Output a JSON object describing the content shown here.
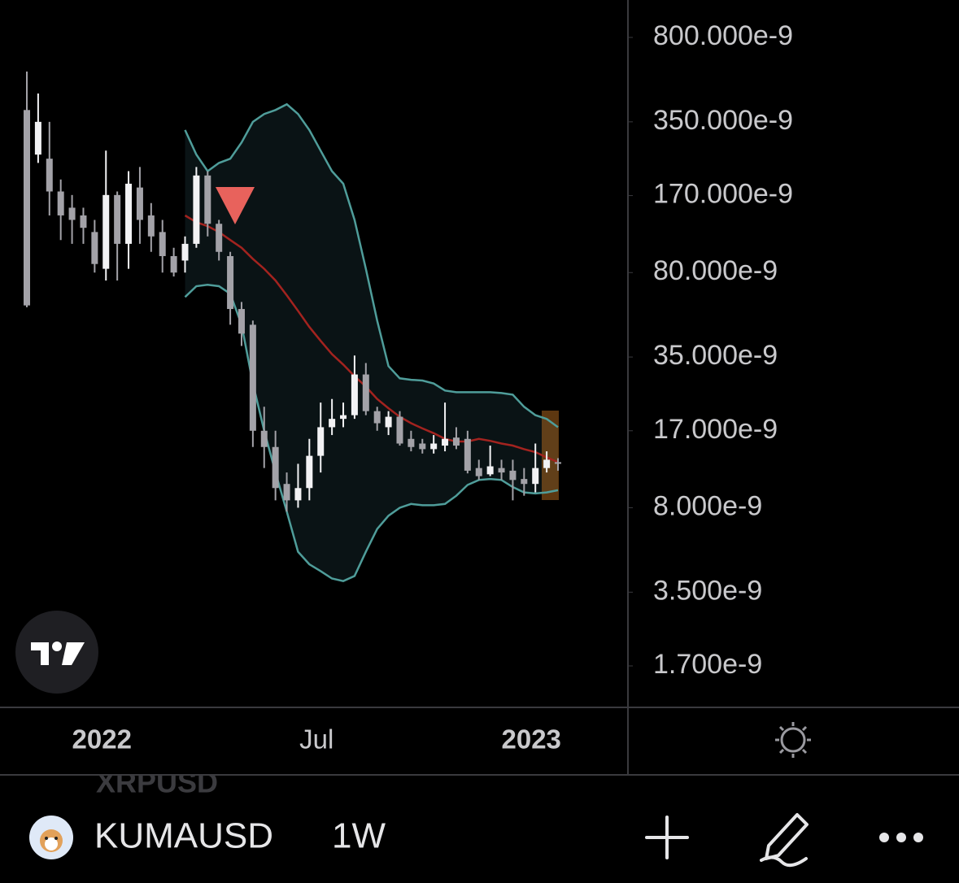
{
  "chart_data": {
    "type": "candlestick",
    "log_scale": true,
    "up_color": "#f2f2f4",
    "down_color": "#a3a2a8",
    "categories": [
      null,
      null,
      null,
      null,
      null,
      null,
      null,
      "2022",
      null,
      null,
      null,
      null,
      null,
      null,
      null,
      null,
      null,
      null,
      null,
      null,
      null,
      null,
      null,
      null,
      null,
      null,
      "Jul",
      null,
      null,
      null,
      null,
      null,
      null,
      null,
      null,
      null,
      null,
      null,
      null,
      null,
      null,
      null,
      null,
      null,
      null,
      "2023",
      null,
      null
    ],
    "open": [
      3.93e-07,
      2.54e-07,
      2.44e-07,
      1.77e-07,
      1.51e-07,
      1.4e-07,
      1.19e-07,
      8.3e-08,
      1.71e-07,
      1.06e-07,
      1.84e-07,
      1.4e-07,
      1.19e-07,
      9.4e-08,
      9e-08,
      1.06e-07,
      2.07e-07,
      1.29e-07,
      9.4e-08,
      5.6e-08,
      4.8e-08,
      1.7e-08,
      1.45e-08,
      1.01e-08,
      8.6e-09,
      9.7e-09,
      1.33e-08,
      1.76e-08,
      1.91e-08,
      1.98e-08,
      2.95e-08,
      2.06e-08,
      1.76e-08,
      1.95e-08,
      1.57e-08,
      1.5e-08,
      1.42e-08,
      1.47e-08,
      1.59e-08,
      1.57e-08,
      1.18e-08,
      1.11e-08,
      1.18e-08,
      1.15e-08,
      1.06e-08,
      1.01e-08,
      1.18e-08,
      1.25e-08
    ],
    "high": [
      5.73e-07,
      4.62e-07,
      3.5e-07,
      1.99e-07,
      1.71e-07,
      1.51e-07,
      1.34e-07,
      2.64e-07,
      1.77e-07,
      2.16e-07,
      2.25e-07,
      1.58e-07,
      1.34e-07,
      1.02e-07,
      1.14e-07,
      2.25e-07,
      2.16e-07,
      1.34e-07,
      9.8e-08,
      6e-08,
      5e-08,
      2.15e-08,
      1.7e-08,
      1.13e-08,
      1.23e-08,
      1.57e-08,
      2.24e-08,
      2.32e-08,
      2.24e-08,
      3.55e-08,
      3.3e-08,
      2.15e-08,
      2.06e-08,
      2.06e-08,
      1.7e-08,
      1.57e-08,
      1.63e-08,
      2.24e-08,
      1.76e-08,
      1.7e-08,
      1.28e-08,
      1.47e-08,
      1.28e-08,
      1.28e-08,
      1.18e-08,
      1.5e-08,
      1.39e-08,
      1.3e-08
    ],
    "low": [
      5.7e-08,
      2.34e-07,
      1.4e-07,
      1.1e-07,
      1.06e-07,
      1.06e-07,
      8e-08,
      7.4e-08,
      7.4e-08,
      8.3e-08,
      1.06e-07,
      9.8e-08,
      8e-08,
      7.7e-08,
      8e-08,
      1.02e-07,
      1.14e-07,
      9e-08,
      4.8e-08,
      3.9e-08,
      1.45e-08,
      1.18e-08,
      8.6e-09,
      7.7e-09,
      8e-09,
      8.6e-09,
      1.13e-08,
      1.63e-08,
      1.76e-08,
      1.91e-08,
      1.98e-08,
      1.7e-08,
      1.63e-08,
      1.47e-08,
      1.39e-08,
      1.36e-08,
      1.36e-08,
      1.39e-08,
      1.42e-08,
      1.12e-08,
      1.05e-08,
      1.09e-08,
      1.05e-08,
      8.6e-09,
      9e-09,
      9.3e-09,
      1.13e-08,
      1.15e-08
    ],
    "close": [
      5.8e-08,
      3.5e-07,
      1.77e-07,
      1.4e-07,
      1.34e-07,
      1.24e-07,
      8.7e-08,
      1.71e-07,
      1.06e-07,
      1.91e-07,
      1.34e-07,
      1.14e-07,
      9.4e-08,
      8e-08,
      1.06e-07,
      2.07e-07,
      1.29e-07,
      9.8e-08,
      5.6e-08,
      4.4e-08,
      1.7e-08,
      1.45e-08,
      9.7e-09,
      8.6e-09,
      9.7e-09,
      1.33e-08,
      1.76e-08,
      1.91e-08,
      1.98e-08,
      2.95e-08,
      2.06e-08,
      1.83e-08,
      1.95e-08,
      1.5e-08,
      1.45e-08,
      1.42e-08,
      1.5e-08,
      1.57e-08,
      1.47e-08,
      1.15e-08,
      1.09e-08,
      1.2e-08,
      1.13e-08,
      1.05e-08,
      1.01e-08,
      1.18e-08,
      1.28e-08,
      1.23e-08
    ],
    "series": [
      {
        "color": "#4f9d9a",
        "values": [
          null,
          null,
          null,
          null,
          null,
          null,
          null,
          null,
          null,
          null,
          null,
          null,
          null,
          null,
          3.23e-07,
          2.54e-07,
          2.16e-07,
          2.34e-07,
          2.44e-07,
          2.86e-07,
          3.5e-07,
          3.78e-07,
          3.93e-07,
          4.16e-07,
          3.78e-07,
          3.23e-07,
          2.64e-07,
          2.16e-07,
          1.91e-07,
          1.34e-07,
          8.3e-08,
          5e-08,
          3.2e-08,
          2.84e-08,
          2.8e-08,
          2.78e-08,
          2.7e-08,
          2.52e-08,
          2.48e-08,
          2.48e-08,
          2.48e-08,
          2.48e-08,
          2.46e-08,
          2.42e-08,
          2.15e-08,
          1.98e-08,
          1.91e-08,
          1.76e-08
        ]
      },
      {
        "color": "#a3231f",
        "values": [
          null,
          null,
          null,
          null,
          null,
          null,
          null,
          null,
          null,
          null,
          null,
          null,
          null,
          null,
          1.4e-07,
          1.31e-07,
          1.26e-07,
          1.19e-07,
          1.1e-07,
          1.02e-07,
          9.15e-08,
          8.3e-08,
          7.4e-08,
          6.4e-08,
          5.5e-08,
          4.7e-08,
          4.1e-08,
          3.6e-08,
          3.25e-08,
          2.9e-08,
          2.62e-08,
          2.32e-08,
          2.12e-08,
          1.95e-08,
          1.83e-08,
          1.74e-08,
          1.66e-08,
          1.57e-08,
          1.53e-08,
          1.53e-08,
          1.57e-08,
          1.54e-08,
          1.5e-08,
          1.47e-08,
          1.42e-08,
          1.38e-08,
          1.31e-08,
          1.25e-08
        ]
      },
      {
        "color": "#4f9d9a",
        "values": [
          null,
          null,
          null,
          null,
          null,
          null,
          null,
          null,
          null,
          null,
          null,
          null,
          null,
          null,
          6.3e-08,
          7e-08,
          7.1e-08,
          7e-08,
          6.5e-08,
          4.8e-08,
          2.7e-08,
          1.7e-08,
          1.13e-08,
          7.7e-09,
          5.2e-09,
          4.6e-09,
          4.3e-09,
          4e-09,
          3.9e-09,
          4.1e-09,
          5.2e-09,
          6.5e-09,
          7.4e-09,
          8e-09,
          8.3e-09,
          8.2e-09,
          8.2e-09,
          8.3e-09,
          9e-09,
          1e-08,
          1.05e-08,
          1.06e-08,
          1.05e-08,
          9.8e-09,
          9.3e-09,
          9.2e-09,
          9.3e-09,
          9.5e-09
        ]
      }
    ],
    "band_fill": "#0a1315",
    "ylim": [
      1.151e-09,
      1.154e-06
    ],
    "yticks": [
      {
        "value": 8e-07,
        "label": "800.000e-9"
      },
      {
        "value": 3.5e-07,
        "label": "350.000e-9"
      },
      {
        "value": 1.7e-07,
        "label": "170.000e-9"
      },
      {
        "value": 8e-08,
        "label": "80.000e-9"
      },
      {
        "value": 3.5e-08,
        "label": "35.000e-9"
      },
      {
        "value": 1.7e-08,
        "label": "17.000e-9"
      },
      {
        "value": 8e-09,
        "label": "8.000e-9"
      },
      {
        "value": 3.5e-09,
        "label": "3.500e-9"
      },
      {
        "value": 1.7e-09,
        "label": "1.700e-9"
      }
    ]
  },
  "toolbar": {
    "watermark": "XRPUSD",
    "symbol": "KUMAUSD",
    "interval": "1W"
  }
}
